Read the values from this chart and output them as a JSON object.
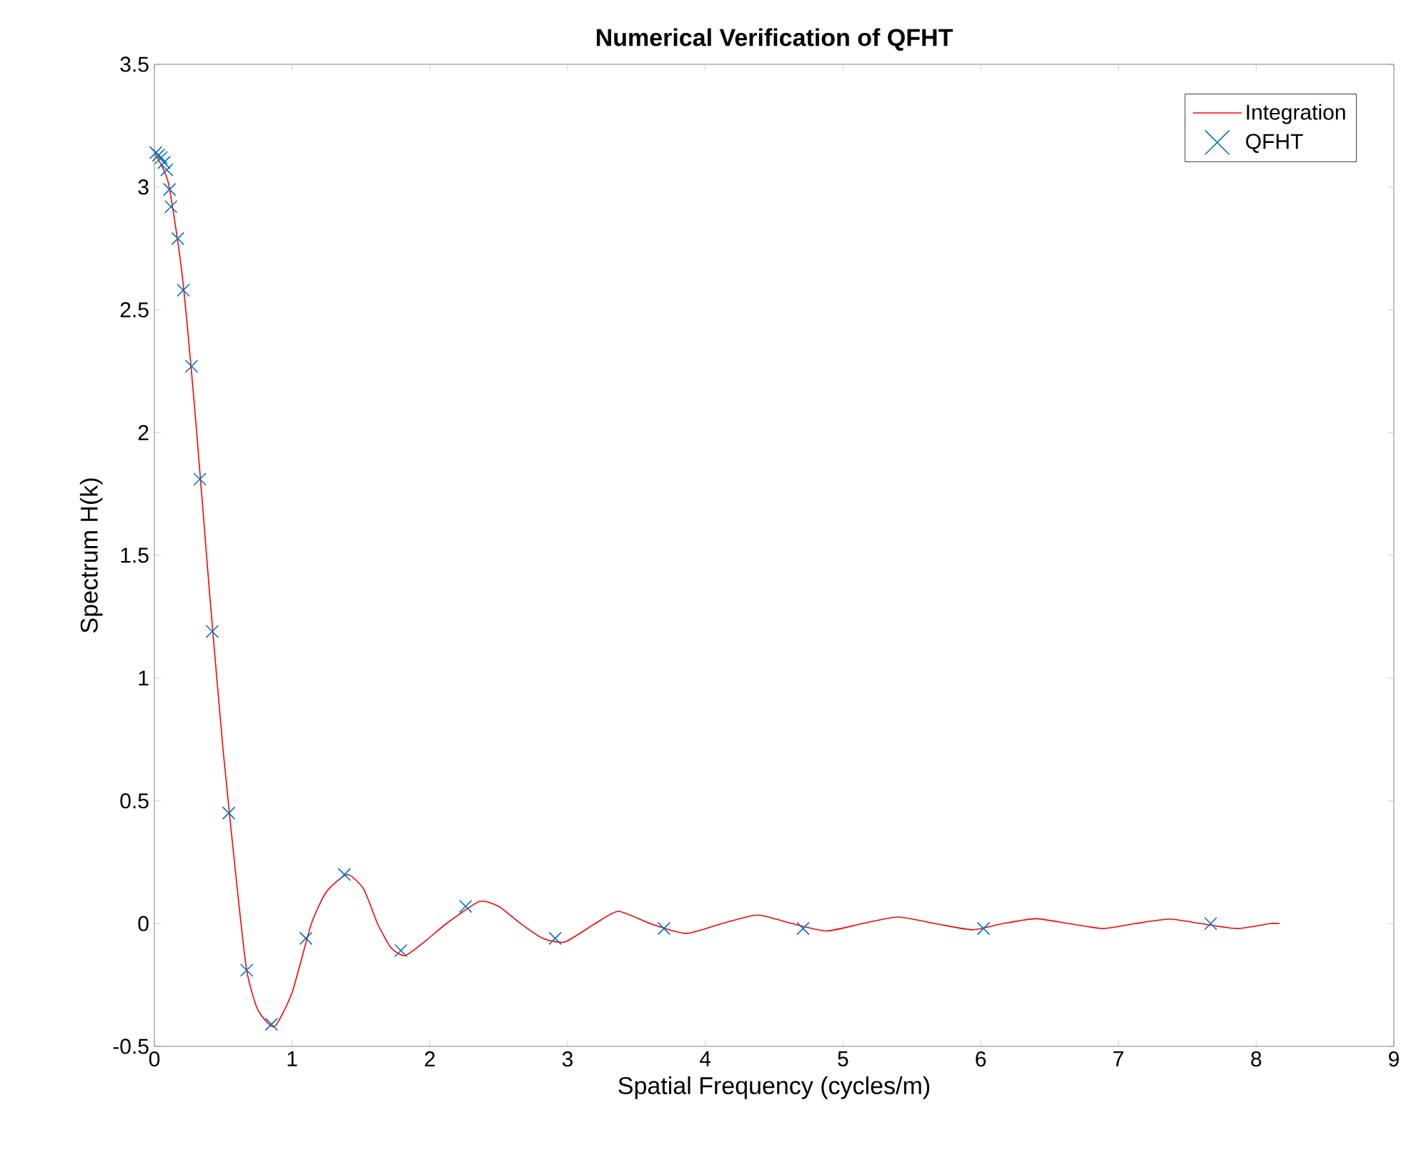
{
  "chart_data": {
    "type": "line",
    "title": "Numerical Verification of QFHT",
    "xlabel": "Spatial Frequency (cycles/m)",
    "ylabel": "Spectrum H(k)",
    "xlim": [
      0,
      9
    ],
    "ylim": [
      -0.5,
      3.5
    ],
    "xticks": [
      0,
      1,
      2,
      3,
      4,
      5,
      6,
      7,
      8,
      9
    ],
    "yticks": [
      -0.5,
      0,
      0.5,
      1,
      1.5,
      2,
      2.5,
      3,
      3.5
    ],
    "grid": false,
    "legend": "top right",
    "series": [
      {
        "name": "Integration",
        "color": "#ff0000",
        "marker": "none",
        "line_style": "solid",
        "x": [
          0,
          0.1,
          0.2,
          0.3,
          0.4,
          0.5,
          0.6,
          0.67,
          0.75,
          0.87,
          1.0,
          1.14,
          1.25,
          1.4,
          1.52,
          1.62,
          1.72,
          1.82,
          1.97,
          2.12,
          2.36,
          2.5,
          2.66,
          2.82,
          2.98,
          3.2,
          3.37,
          3.6,
          3.86,
          4.12,
          4.38,
          4.63,
          4.88,
          5.14,
          5.4,
          5.67,
          5.94,
          6.16,
          6.4,
          6.64,
          6.89,
          7.12,
          7.37,
          7.6,
          7.86,
          8.1,
          8.17
        ],
        "values": [
          3.14,
          3.02,
          2.65,
          2.05,
          1.35,
          0.7,
          0.15,
          -0.19,
          -0.35,
          -0.42,
          -0.28,
          0,
          0.13,
          0.2,
          0.14,
          0,
          -0.1,
          -0.13,
          -0.07,
          0,
          0.09,
          0.07,
          0,
          -0.06,
          -0.075,
          0,
          0.05,
          0,
          -0.04,
          0,
          0.035,
          0,
          -0.03,
          0,
          0.027,
          0,
          -0.025,
          0,
          0.02,
          0,
          -0.02,
          0,
          0.018,
          0,
          -0.02,
          0,
          0
        ]
      },
      {
        "name": "QFHT",
        "type": "scatter",
        "color": "#0072bd",
        "marker": "cross",
        "x": [
          0.01,
          0.03,
          0.05,
          0.07,
          0.09,
          0.11,
          0.12,
          0.17,
          0.21,
          0.27,
          0.33,
          0.42,
          0.54,
          0.67,
          0.85,
          1.1,
          1.38,
          1.79,
          2.26,
          2.91,
          3.7,
          4.71,
          6.02,
          7.67
        ],
        "values": [
          3.14,
          3.13,
          3.12,
          3.1,
          3.07,
          2.99,
          2.92,
          2.79,
          2.58,
          2.27,
          1.81,
          1.19,
          0.45,
          -0.19,
          -0.41,
          -0.06,
          0.2,
          -0.11,
          0.07,
          -0.06,
          -0.02,
          -0.02,
          -0.02,
          0
        ]
      }
    ]
  }
}
